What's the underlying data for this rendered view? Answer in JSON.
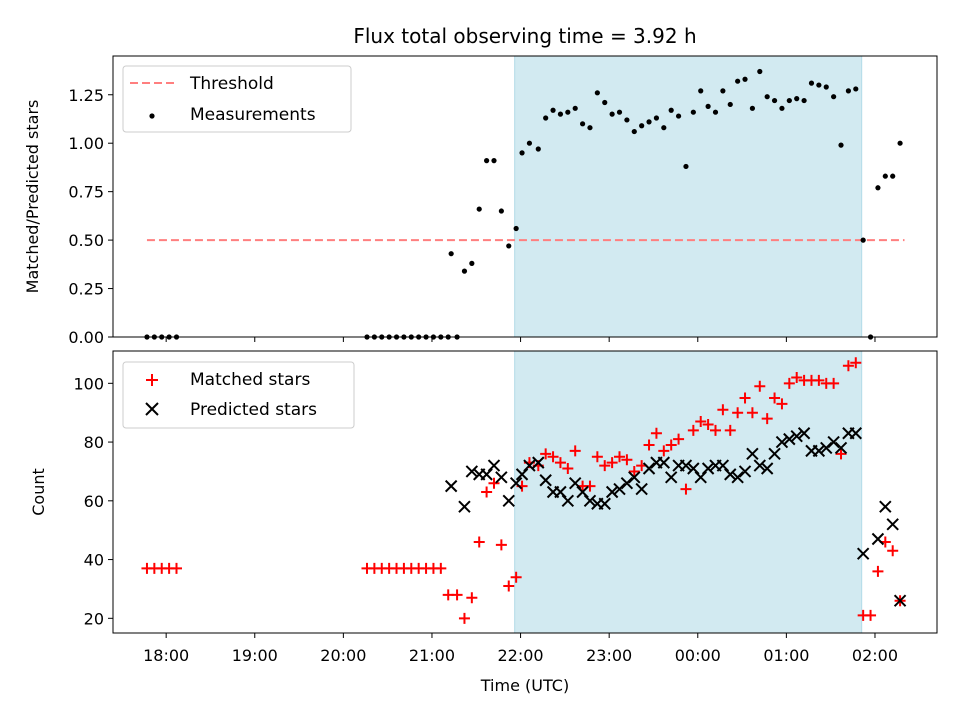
{
  "figure": {
    "title": "Flux total observing time = 3.92 h",
    "colors": {
      "threshold": "#ff7f7f",
      "measurements": "#000000",
      "matched": "#ff0000",
      "predicted": "#000000",
      "window_fill": "#add8e6"
    }
  },
  "chart_data": [
    {
      "type": "scatter",
      "ylabel": "Matched/Predicted stars",
      "xlabel": "",
      "ylim": [
        0.0,
        1.45
      ],
      "x_range_hours": [
        17.4,
        26.7
      ],
      "yticks": [
        "0.00",
        "0.25",
        "0.50",
        "0.75",
        "1.00",
        "1.25"
      ],
      "legend_position": "upper-left",
      "shaded_window": {
        "start": "21:56",
        "end": "01:51"
      },
      "threshold": {
        "name": "Threshold",
        "value": 0.5,
        "from": "17:47",
        "to": "02:20"
      },
      "series": [
        {
          "name": "Measurements",
          "marker": "dot",
          "points": [
            [
              "17:47",
              0
            ],
            [
              "17:52",
              0
            ],
            [
              "17:57",
              0
            ],
            [
              "18:02",
              0
            ],
            [
              "18:07",
              0
            ],
            [
              "20:16",
              0
            ],
            [
              "20:21",
              0
            ],
            [
              "20:26",
              0
            ],
            [
              "20:31",
              0
            ],
            [
              "20:36",
              0
            ],
            [
              "20:41",
              0
            ],
            [
              "20:46",
              0
            ],
            [
              "20:51",
              0
            ],
            [
              "20:56",
              0
            ],
            [
              "21:01",
              0
            ],
            [
              "21:06",
              0
            ],
            [
              "21:11",
              0
            ],
            [
              "21:13",
              0.43
            ],
            [
              "21:17",
              0
            ],
            [
              "21:22",
              0.34
            ],
            [
              "21:27",
              0.38
            ],
            [
              "21:32",
              0.66
            ],
            [
              "21:37",
              0.91
            ],
            [
              "21:42",
              0.91
            ],
            [
              "21:47",
              0.65
            ],
            [
              "21:52",
              0.47
            ],
            [
              "21:57",
              0.56
            ],
            [
              "22:01",
              0.95
            ],
            [
              "22:06",
              1.0
            ],
            [
              "22:12",
              0.97
            ],
            [
              "22:17",
              1.13
            ],
            [
              "22:22",
              1.17
            ],
            [
              "22:27",
              1.15
            ],
            [
              "22:32",
              1.16
            ],
            [
              "22:37",
              1.18
            ],
            [
              "22:42",
              1.1
            ],
            [
              "22:47",
              1.08
            ],
            [
              "22:52",
              1.26
            ],
            [
              "22:57",
              1.21
            ],
            [
              "23:02",
              1.15
            ],
            [
              "23:07",
              1.16
            ],
            [
              "23:12",
              1.12
            ],
            [
              "23:17",
              1.06
            ],
            [
              "23:22",
              1.09
            ],
            [
              "23:27",
              1.11
            ],
            [
              "23:32",
              1.13
            ],
            [
              "23:37",
              1.08
            ],
            [
              "23:42",
              1.17
            ],
            [
              "23:47",
              1.14
            ],
            [
              "23:52",
              0.88
            ],
            [
              "23:57",
              1.16
            ],
            [
              "00:02",
              1.27
            ],
            [
              "00:07",
              1.19
            ],
            [
              "00:12",
              1.16
            ],
            [
              "00:17",
              1.27
            ],
            [
              "00:22",
              1.2
            ],
            [
              "00:27",
              1.32
            ],
            [
              "00:32",
              1.33
            ],
            [
              "00:37",
              1.18
            ],
            [
              "00:42",
              1.37
            ],
            [
              "00:47",
              1.24
            ],
            [
              "00:52",
              1.22
            ],
            [
              "00:57",
              1.18
            ],
            [
              "01:02",
              1.22
            ],
            [
              "01:07",
              1.23
            ],
            [
              "01:12",
              1.22
            ],
            [
              "01:17",
              1.31
            ],
            [
              "01:22",
              1.3
            ],
            [
              "01:27",
              1.29
            ],
            [
              "01:32",
              1.24
            ],
            [
              "01:37",
              0.99
            ],
            [
              "01:42",
              1.27
            ],
            [
              "01:47",
              1.28
            ],
            [
              "01:52",
              0.5
            ],
            [
              "01:57",
              0.0
            ],
            [
              "02:02",
              0.77
            ],
            [
              "02:07",
              0.83
            ],
            [
              "02:12",
              0.83
            ],
            [
              "02:17",
              1.0
            ]
          ]
        }
      ]
    },
    {
      "type": "scatter",
      "ylabel": "Count",
      "xlabel": "Time (UTC)",
      "ylim": [
        15,
        111
      ],
      "x_range_hours": [
        17.4,
        26.7
      ],
      "yticks": [
        "20",
        "40",
        "60",
        "80",
        "100"
      ],
      "xticks": [
        "18:00",
        "19:00",
        "20:00",
        "21:00",
        "22:00",
        "23:00",
        "00:00",
        "01:00",
        "02:00"
      ],
      "legend_position": "upper-left",
      "shaded_window": {
        "start": "21:56",
        "end": "01:51"
      },
      "series": [
        {
          "name": "Matched stars",
          "marker": "plus",
          "points": [
            [
              "17:47",
              37
            ],
            [
              "17:52",
              37
            ],
            [
              "17:57",
              37
            ],
            [
              "18:02",
              37
            ],
            [
              "18:07",
              37
            ],
            [
              "20:16",
              37
            ],
            [
              "20:21",
              37
            ],
            [
              "20:26",
              37
            ],
            [
              "20:31",
              37
            ],
            [
              "20:36",
              37
            ],
            [
              "20:41",
              37
            ],
            [
              "20:46",
              37
            ],
            [
              "20:51",
              37
            ],
            [
              "20:56",
              37
            ],
            [
              "21:01",
              37
            ],
            [
              "21:06",
              37
            ],
            [
              "21:11",
              28
            ],
            [
              "21:17",
              28
            ],
            [
              "21:22",
              20
            ],
            [
              "21:27",
              27
            ],
            [
              "21:32",
              46
            ],
            [
              "21:37",
              63
            ],
            [
              "21:42",
              66
            ],
            [
              "21:47",
              45
            ],
            [
              "21:52",
              31
            ],
            [
              "21:57",
              34
            ],
            [
              "22:01",
              65
            ],
            [
              "22:06",
              73
            ],
            [
              "22:12",
              72
            ],
            [
              "22:17",
              76
            ],
            [
              "22:22",
              75
            ],
            [
              "22:27",
              73
            ],
            [
              "22:32",
              71
            ],
            [
              "22:37",
              77
            ],
            [
              "22:42",
              65
            ],
            [
              "22:47",
              65
            ],
            [
              "22:52",
              75
            ],
            [
              "22:57",
              72
            ],
            [
              "23:02",
              73
            ],
            [
              "23:07",
              75
            ],
            [
              "23:12",
              74
            ],
            [
              "23:17",
              70
            ],
            [
              "23:22",
              72
            ],
            [
              "23:27",
              79
            ],
            [
              "23:32",
              83
            ],
            [
              "23:37",
              77
            ],
            [
              "23:42",
              79
            ],
            [
              "23:47",
              81
            ],
            [
              "23:52",
              64
            ],
            [
              "23:57",
              84
            ],
            [
              "00:02",
              87
            ],
            [
              "00:07",
              86
            ],
            [
              "00:12",
              84
            ],
            [
              "00:17",
              91
            ],
            [
              "00:22",
              84
            ],
            [
              "00:27",
              90
            ],
            [
              "00:32",
              95
            ],
            [
              "00:37",
              90
            ],
            [
              "00:42",
              99
            ],
            [
              "00:47",
              88
            ],
            [
              "00:52",
              95
            ],
            [
              "00:57",
              93
            ],
            [
              "01:02",
              100
            ],
            [
              "01:07",
              102
            ],
            [
              "01:12",
              101
            ],
            [
              "01:17",
              101
            ],
            [
              "01:22",
              101
            ],
            [
              "01:27",
              100
            ],
            [
              "01:32",
              100
            ],
            [
              "01:37",
              76
            ],
            [
              "01:42",
              106
            ],
            [
              "01:47",
              107
            ],
            [
              "01:52",
              21
            ],
            [
              "01:57",
              21
            ],
            [
              "02:02",
              36
            ],
            [
              "02:07",
              46
            ],
            [
              "02:12",
              43
            ],
            [
              "02:17",
              26
            ]
          ]
        },
        {
          "name": "Predicted stars",
          "marker": "x",
          "points": [
            [
              "21:13",
              65
            ],
            [
              "21:22",
              58
            ],
            [
              "21:27",
              70
            ],
            [
              "21:32",
              69
            ],
            [
              "21:37",
              69
            ],
            [
              "21:42",
              72
            ],
            [
              "21:47",
              68
            ],
            [
              "21:52",
              60
            ],
            [
              "21:57",
              66
            ],
            [
              "22:01",
              69
            ],
            [
              "22:06",
              72
            ],
            [
              "22:12",
              73
            ],
            [
              "22:17",
              67
            ],
            [
              "22:22",
              63
            ],
            [
              "22:27",
              63
            ],
            [
              "22:32",
              60
            ],
            [
              "22:37",
              66
            ],
            [
              "22:42",
              63
            ],
            [
              "22:47",
              60
            ],
            [
              "22:52",
              59
            ],
            [
              "22:57",
              59
            ],
            [
              "23:02",
              63
            ],
            [
              "23:07",
              64
            ],
            [
              "23:12",
              66
            ],
            [
              "23:17",
              68
            ],
            [
              "23:22",
              64
            ],
            [
              "23:27",
              71
            ],
            [
              "23:32",
              73
            ],
            [
              "23:37",
              73
            ],
            [
              "23:42",
              68
            ],
            [
              "23:47",
              72
            ],
            [
              "23:52",
              72
            ],
            [
              "23:57",
              71
            ],
            [
              "00:02",
              68
            ],
            [
              "00:07",
              71
            ],
            [
              "00:12",
              72
            ],
            [
              "00:17",
              72
            ],
            [
              "00:22",
              69
            ],
            [
              "00:27",
              68
            ],
            [
              "00:32",
              70
            ],
            [
              "00:37",
              76
            ],
            [
              "00:42",
              72
            ],
            [
              "00:47",
              71
            ],
            [
              "00:52",
              76
            ],
            [
              "00:57",
              80
            ],
            [
              "01:02",
              81
            ],
            [
              "01:07",
              82
            ],
            [
              "01:12",
              83
            ],
            [
              "01:17",
              77
            ],
            [
              "01:22",
              77
            ],
            [
              "01:27",
              78
            ],
            [
              "01:32",
              80
            ],
            [
              "01:37",
              78
            ],
            [
              "01:42",
              83
            ],
            [
              "01:47",
              83
            ],
            [
              "01:52",
              42
            ],
            [
              "02:02",
              47
            ],
            [
              "02:07",
              58
            ],
            [
              "02:12",
              52
            ],
            [
              "02:17",
              26
            ]
          ]
        }
      ]
    }
  ]
}
